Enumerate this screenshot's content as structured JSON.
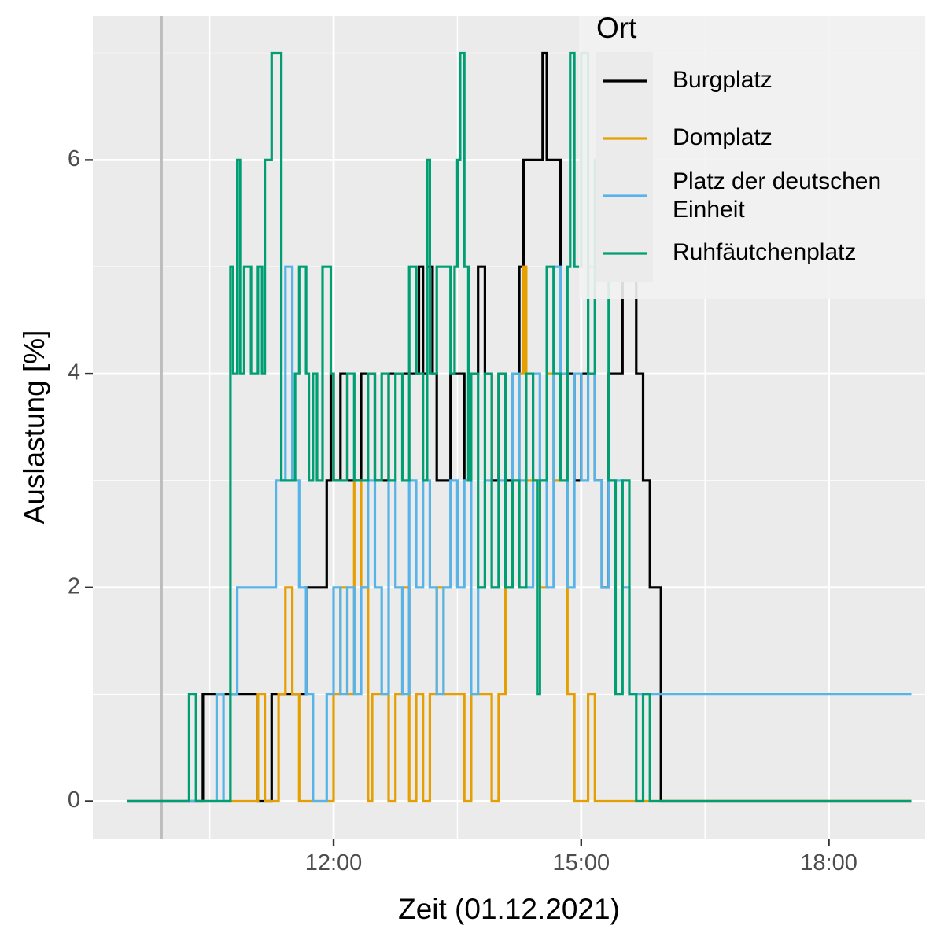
{
  "chart_data": {
    "type": "line",
    "step": true,
    "xlabel": "Zeit (01.12.2021)",
    "ylabel": "Auslastung [%]",
    "x_ticks": [
      "12:00",
      "15:00",
      "18:00"
    ],
    "y_ticks": [
      "0",
      "2",
      "4",
      "6"
    ],
    "xlim": [
      "09:05",
      "19:10"
    ],
    "ylim": [
      -0.35,
      7.35
    ],
    "grid": true,
    "reference_line_x": "09:55",
    "legend": {
      "title": "Ort",
      "position": "top-right"
    },
    "series": [
      {
        "name": "Burgplatz",
        "color": "#000000",
        "points": [
          [
            "09:30",
            0
          ],
          [
            "10:20",
            0
          ],
          [
            "10:25",
            1
          ],
          [
            "11:00",
            1
          ],
          [
            "11:05",
            0
          ],
          [
            "11:12",
            0
          ],
          [
            "11:15",
            1
          ],
          [
            "11:30",
            1
          ],
          [
            "11:35",
            1
          ],
          [
            "11:40",
            2
          ],
          [
            "11:50",
            2
          ],
          [
            "11:55",
            3
          ],
          [
            "11:58",
            4
          ],
          [
            "12:00",
            3
          ],
          [
            "12:05",
            4
          ],
          [
            "12:10",
            3
          ],
          [
            "12:15",
            3
          ],
          [
            "12:20",
            4
          ],
          [
            "12:25",
            4
          ],
          [
            "12:30",
            3
          ],
          [
            "12:35",
            3
          ],
          [
            "12:40",
            4
          ],
          [
            "12:50",
            4
          ],
          [
            "13:00",
            4
          ],
          [
            "13:02",
            5
          ],
          [
            "13:05",
            4
          ],
          [
            "13:08",
            5
          ],
          [
            "13:12",
            4
          ],
          [
            "13:15",
            3
          ],
          [
            "13:20",
            3
          ],
          [
            "13:25",
            4
          ],
          [
            "13:30",
            4
          ],
          [
            "13:35",
            3
          ],
          [
            "13:40",
            4
          ],
          [
            "13:45",
            5
          ],
          [
            "13:50",
            4
          ],
          [
            "13:55",
            3
          ],
          [
            "14:00",
            4
          ],
          [
            "14:05",
            3
          ],
          [
            "14:10",
            4
          ],
          [
            "14:15",
            5
          ],
          [
            "14:18",
            6
          ],
          [
            "14:30",
            6
          ],
          [
            "14:32",
            7
          ],
          [
            "14:35",
            6
          ],
          [
            "14:40",
            6
          ],
          [
            "14:45",
            4
          ],
          [
            "14:50",
            4
          ],
          [
            "14:55",
            3
          ],
          [
            "15:00",
            4
          ],
          [
            "15:05",
            4
          ],
          [
            "15:10",
            3
          ],
          [
            "15:15",
            2
          ],
          [
            "15:20",
            4
          ],
          [
            "15:25",
            4
          ],
          [
            "15:30",
            5
          ],
          [
            "15:35",
            5
          ],
          [
            "15:40",
            4
          ],
          [
            "15:45",
            3
          ],
          [
            "15:50",
            2
          ],
          [
            "15:55",
            2
          ],
          [
            "15:58",
            0
          ],
          [
            "19:00",
            0
          ]
        ]
      },
      {
        "name": "Domplatz",
        "color": "#E69F00",
        "points": [
          [
            "09:30",
            0
          ],
          [
            "11:00",
            0
          ],
          [
            "11:05",
            1
          ],
          [
            "11:10",
            0
          ],
          [
            "11:20",
            1
          ],
          [
            "11:25",
            2
          ],
          [
            "11:30",
            1
          ],
          [
            "11:35",
            0
          ],
          [
            "11:50",
            0
          ],
          [
            "12:00",
            1
          ],
          [
            "12:05",
            2
          ],
          [
            "12:10",
            1
          ],
          [
            "12:15",
            3
          ],
          [
            "12:20",
            2
          ],
          [
            "12:25",
            0
          ],
          [
            "12:28",
            1
          ],
          [
            "12:35",
            1
          ],
          [
            "12:40",
            0
          ],
          [
            "12:45",
            1
          ],
          [
            "12:50",
            2
          ],
          [
            "12:55",
            0
          ],
          [
            "13:00",
            1
          ],
          [
            "13:05",
            0
          ],
          [
            "13:10",
            1
          ],
          [
            "13:15",
            2
          ],
          [
            "13:20",
            1
          ],
          [
            "13:30",
            1
          ],
          [
            "13:35",
            0
          ],
          [
            "13:40",
            1
          ],
          [
            "13:50",
            1
          ],
          [
            "13:55",
            0
          ],
          [
            "14:00",
            1
          ],
          [
            "14:05",
            2
          ],
          [
            "14:10",
            3
          ],
          [
            "14:15",
            4
          ],
          [
            "14:18",
            5
          ],
          [
            "14:20",
            3
          ],
          [
            "14:25",
            3
          ],
          [
            "14:30",
            2
          ],
          [
            "14:35",
            4
          ],
          [
            "14:40",
            3
          ],
          [
            "14:45",
            4
          ],
          [
            "14:50",
            1
          ],
          [
            "14:55",
            0
          ],
          [
            "15:00",
            0
          ],
          [
            "15:05",
            1
          ],
          [
            "15:10",
            0
          ],
          [
            "19:00",
            0
          ]
        ]
      },
      {
        "name": "Platz der deutschen Einheit",
        "color": "#56B4E9",
        "points": [
          [
            "09:30",
            0
          ],
          [
            "10:30",
            0
          ],
          [
            "10:35",
            1
          ],
          [
            "10:40",
            0
          ],
          [
            "10:45",
            1
          ],
          [
            "10:50",
            2
          ],
          [
            "11:10",
            2
          ],
          [
            "11:15",
            2
          ],
          [
            "11:18",
            3
          ],
          [
            "11:22",
            3
          ],
          [
            "11:25",
            5
          ],
          [
            "11:30",
            3
          ],
          [
            "11:35",
            2
          ],
          [
            "11:40",
            1
          ],
          [
            "11:45",
            0
          ],
          [
            "11:50",
            0
          ],
          [
            "11:55",
            1
          ],
          [
            "12:00",
            2
          ],
          [
            "12:05",
            1
          ],
          [
            "12:10",
            2
          ],
          [
            "12:15",
            1
          ],
          [
            "12:20",
            2
          ],
          [
            "12:25",
            3
          ],
          [
            "12:30",
            2
          ],
          [
            "12:35",
            1
          ],
          [
            "12:40",
            3
          ],
          [
            "12:45",
            2
          ],
          [
            "12:50",
            1
          ],
          [
            "12:55",
            3
          ],
          [
            "13:00",
            2
          ],
          [
            "13:05",
            3
          ],
          [
            "13:10",
            2
          ],
          [
            "13:15",
            1
          ],
          [
            "13:20",
            2
          ],
          [
            "13:25",
            3
          ],
          [
            "13:30",
            2
          ],
          [
            "13:35",
            3
          ],
          [
            "13:40",
            1
          ],
          [
            "13:45",
            2
          ],
          [
            "13:50",
            3
          ],
          [
            "13:55",
            2
          ],
          [
            "14:00",
            3
          ],
          [
            "14:05",
            2
          ],
          [
            "14:10",
            4
          ],
          [
            "14:15",
            3
          ],
          [
            "14:20",
            2
          ],
          [
            "14:25",
            4
          ],
          [
            "14:30",
            3
          ],
          [
            "14:35",
            2
          ],
          [
            "14:40",
            5
          ],
          [
            "14:45",
            4
          ],
          [
            "14:50",
            2
          ],
          [
            "14:55",
            4
          ],
          [
            "15:00",
            3
          ],
          [
            "15:05",
            5
          ],
          [
            "15:10",
            3
          ],
          [
            "15:15",
            2
          ],
          [
            "15:20",
            3
          ],
          [
            "15:25",
            3
          ],
          [
            "15:30",
            2
          ],
          [
            "15:35",
            1
          ],
          [
            "15:40",
            1
          ],
          [
            "19:00",
            1
          ]
        ]
      },
      {
        "name": "Ruhfäutchenplatz",
        "color": "#009E73",
        "points": [
          [
            "09:30",
            0
          ],
          [
            "10:10",
            0
          ],
          [
            "10:15",
            1
          ],
          [
            "10:20",
            0
          ],
          [
            "10:40",
            0
          ],
          [
            "10:45",
            5
          ],
          [
            "10:47",
            4
          ],
          [
            "10:50",
            6
          ],
          [
            "10:52",
            4
          ],
          [
            "10:55",
            5
          ],
          [
            "11:00",
            4
          ],
          [
            "11:05",
            5
          ],
          [
            "11:08",
            4
          ],
          [
            "11:10",
            6
          ],
          [
            "11:15",
            7
          ],
          [
            "11:20",
            7
          ],
          [
            "11:22",
            3
          ],
          [
            "11:30",
            3
          ],
          [
            "11:32",
            4
          ],
          [
            "11:35",
            5
          ],
          [
            "11:40",
            4
          ],
          [
            "11:42",
            3
          ],
          [
            "11:45",
            4
          ],
          [
            "11:48",
            3
          ],
          [
            "11:52",
            5
          ],
          [
            "11:55",
            5
          ],
          [
            "11:58",
            4
          ],
          [
            "12:00",
            3
          ],
          [
            "12:05",
            3
          ],
          [
            "12:10",
            4
          ],
          [
            "12:15",
            3
          ],
          [
            "12:20",
            3
          ],
          [
            "12:25",
            4
          ],
          [
            "12:30",
            3
          ],
          [
            "12:35",
            4
          ],
          [
            "12:40",
            3
          ],
          [
            "12:45",
            4
          ],
          [
            "12:50",
            3
          ],
          [
            "12:55",
            5
          ],
          [
            "13:00",
            4
          ],
          [
            "13:05",
            3
          ],
          [
            "13:08",
            6
          ],
          [
            "13:10",
            4
          ],
          [
            "13:15",
            5
          ],
          [
            "13:20",
            5
          ],
          [
            "13:25",
            4
          ],
          [
            "13:28",
            5
          ],
          [
            "13:30",
            6
          ],
          [
            "13:32",
            7
          ],
          [
            "13:35",
            5
          ],
          [
            "13:38",
            3
          ],
          [
            "13:40",
            4
          ],
          [
            "13:45",
            2
          ],
          [
            "13:50",
            4
          ],
          [
            "13:55",
            2
          ],
          [
            "14:00",
            4
          ],
          [
            "14:05",
            2
          ],
          [
            "14:10",
            3
          ],
          [
            "14:15",
            2
          ],
          [
            "14:20",
            4
          ],
          [
            "14:25",
            3
          ],
          [
            "14:28",
            1
          ],
          [
            "14:30",
            3
          ],
          [
            "14:35",
            5
          ],
          [
            "14:40",
            4
          ],
          [
            "14:45",
            3
          ],
          [
            "14:50",
            5
          ],
          [
            "14:52",
            7
          ],
          [
            "14:55",
            5
          ],
          [
            "15:00",
            7
          ],
          [
            "15:05",
            4
          ],
          [
            "15:10",
            6
          ],
          [
            "15:15",
            5
          ],
          [
            "15:20",
            3
          ],
          [
            "15:25",
            1
          ],
          [
            "15:30",
            3
          ],
          [
            "15:35",
            1
          ],
          [
            "15:40",
            0
          ],
          [
            "15:45",
            1
          ],
          [
            "15:50",
            0
          ],
          [
            "19:00",
            0
          ]
        ]
      }
    ]
  }
}
